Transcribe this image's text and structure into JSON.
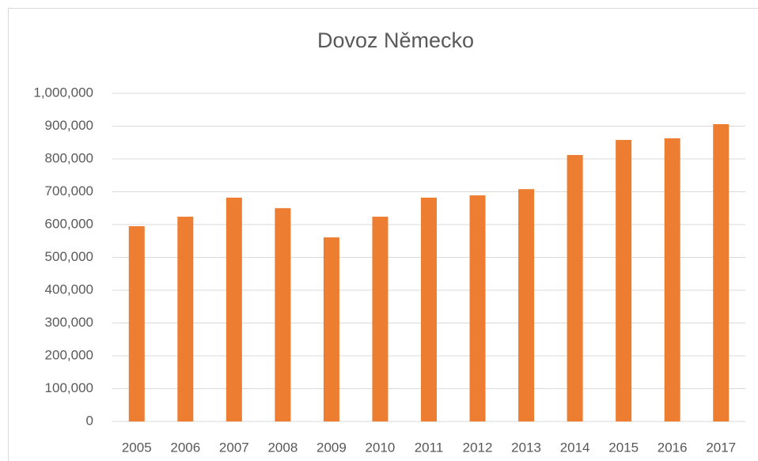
{
  "chart_data": {
    "type": "bar",
    "title": "Dovoz Německo",
    "categories": [
      "2005",
      "2006",
      "2007",
      "2008",
      "2009",
      "2010",
      "2011",
      "2012",
      "2013",
      "2014",
      "2015",
      "2016",
      "2017"
    ],
    "values": [
      595000,
      624000,
      682000,
      650000,
      561000,
      624000,
      682000,
      689000,
      708000,
      812000,
      858000,
      863000,
      906000
    ],
    "color": "#ed7d31",
    "ylim": [
      0,
      1000000
    ],
    "yticks": [
      0,
      {
        "value": 100000,
        "label": "100,000"
      },
      {
        "value": 200000,
        "label": "200,000"
      },
      {
        "value": 300000,
        "label": "300,000"
      },
      {
        "value": 400000,
        "label": "400,000"
      },
      {
        "value": 500000,
        "label": "500,000"
      },
      {
        "value": 600000,
        "label": "600,000"
      },
      {
        "value": 700000,
        "label": "700,000"
      },
      {
        "value": 800000,
        "label": "800,000"
      },
      {
        "value": 900000,
        "label": "900,000"
      },
      {
        "value": 1000000,
        "label": "1,000,000"
      }
    ],
    "grid": true
  }
}
